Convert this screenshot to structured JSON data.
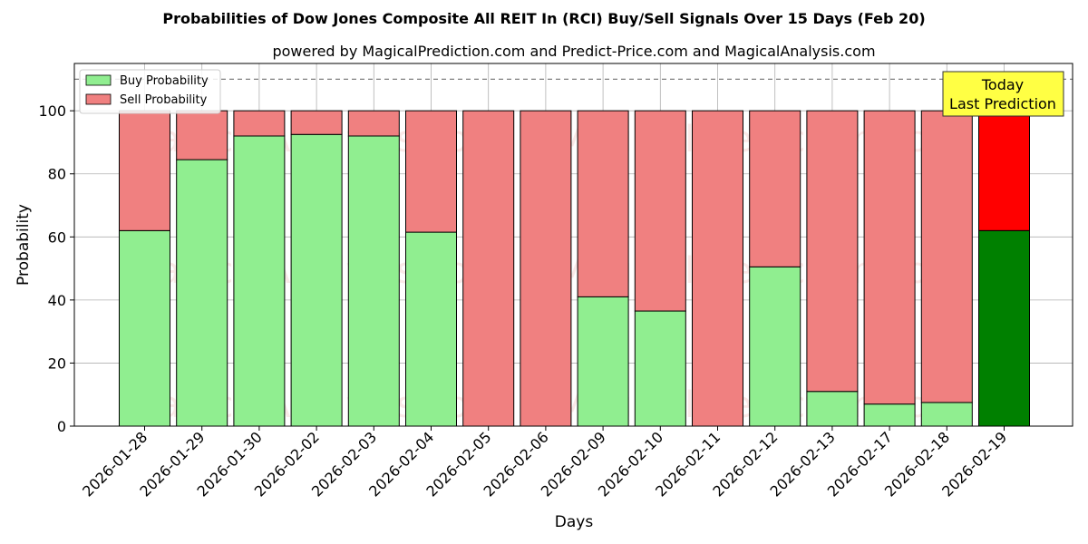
{
  "chart_data": {
    "type": "bar",
    "stacked": true,
    "title": "Probabilities of Dow Jones Composite All REIT In (RCI) Buy/Sell Signals Over 15 Days (Feb 20)",
    "subtitle": "powered by MagicalPrediction.com and Predict-Price.com and MagicalAnalysis.com",
    "xlabel": "Days",
    "ylabel": "Probability",
    "ylim": [
      0,
      115
    ],
    "yticks": [
      0,
      20,
      40,
      60,
      80,
      100
    ],
    "grid": true,
    "legend_position": "top-left",
    "reference_line": 110,
    "categories": [
      "2026-01-28",
      "2026-01-29",
      "2026-01-30",
      "2026-02-02",
      "2026-02-03",
      "2026-02-04",
      "2026-02-05",
      "2026-02-06",
      "2026-02-09",
      "2026-02-10",
      "2026-02-11",
      "2026-02-12",
      "2026-02-13",
      "2026-02-17",
      "2026-02-18",
      "2026-02-19"
    ],
    "series": [
      {
        "name": "Buy Probability",
        "color": "#90ee90",
        "highlight_color": "#008000",
        "values": [
          62,
          84.5,
          92,
          92.5,
          92,
          61.5,
          0,
          0,
          41,
          36.5,
          0,
          50.5,
          11,
          7,
          7.5,
          62
        ]
      },
      {
        "name": "Sell Probability",
        "color": "#f08080",
        "highlight_color": "#ff0000",
        "values": [
          38,
          15.5,
          8,
          7.5,
          8,
          38.5,
          100,
          100,
          59,
          63.5,
          100,
          49.5,
          89,
          93,
          92.5,
          38
        ]
      }
    ],
    "highlight_index": 15,
    "annotation": {
      "line1": "Today",
      "line2": "Last Prediction"
    },
    "watermarks": [
      "MagicalAnalysis.com",
      "MagicalPrediction.com"
    ]
  }
}
